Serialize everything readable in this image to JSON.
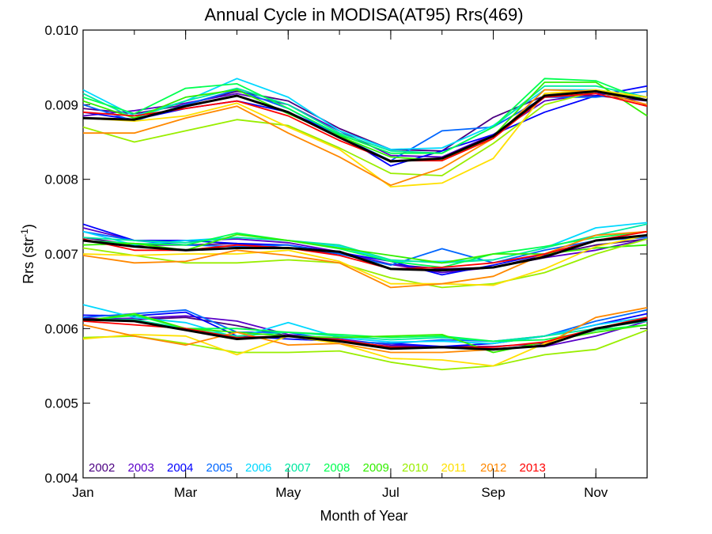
{
  "chart_data": {
    "type": "line",
    "title": "Annual Cycle in MODISA(AT95) Rrs(469)",
    "xlabel": "Month of Year",
    "ylabel_main": "Rrs (str",
    "ylabel_sup": "-1",
    "ylabel_close": ")",
    "xlim": [
      1,
      12
    ],
    "ylim": [
      0.004,
      0.01
    ],
    "x_ticks": [
      {
        "value": 1,
        "label": "Jan"
      },
      {
        "value": 3,
        "label": "Mar"
      },
      {
        "value": 5,
        "label": "May"
      },
      {
        "value": 7,
        "label": "Jul"
      },
      {
        "value": 9,
        "label": "Sep"
      },
      {
        "value": 11,
        "label": "Nov"
      }
    ],
    "y_ticks": [
      {
        "value": 0.004,
        "label": "0.004"
      },
      {
        "value": 0.005,
        "label": "0.005"
      },
      {
        "value": 0.006,
        "label": "0.006"
      },
      {
        "value": 0.007,
        "label": "0.007"
      },
      {
        "value": 0.008,
        "label": "0.008"
      },
      {
        "value": 0.009,
        "label": "0.009"
      },
      {
        "value": 0.01,
        "label": "0.010"
      }
    ],
    "grid": false,
    "legend_position": "bottom-left",
    "x": [
      1,
      2,
      3,
      4,
      5,
      6,
      7,
      8,
      9,
      10,
      11,
      12
    ],
    "series": [
      {
        "name": "2002",
        "color": "#4b0082",
        "top": [
          0.00895,
          0.00888,
          0.009,
          0.00918,
          0.00905,
          0.00868,
          0.0084,
          0.00838,
          0.00883,
          0.00912,
          0.00912,
          0.00905
        ],
        "mid": [
          0.00722,
          0.00712,
          0.00712,
          0.00714,
          0.00708,
          0.007,
          0.00686,
          0.0068,
          0.00682,
          0.00698,
          0.00712,
          0.0072
        ],
        "low": [
          0.00614,
          0.00612,
          0.00615,
          0.00604,
          0.0059,
          0.00583,
          0.00576,
          0.00576,
          0.00576,
          0.0058,
          0.00598,
          0.00614
        ]
      },
      {
        "name": "2003",
        "color": "#5a00c8",
        "top": [
          0.00885,
          0.00892,
          0.00902,
          0.00915,
          0.009,
          0.00865,
          0.00832,
          0.0083,
          0.0086,
          0.00905,
          0.00915,
          0.0091
        ],
        "mid": [
          0.00735,
          0.00718,
          0.00718,
          0.0072,
          0.00715,
          0.00703,
          0.00686,
          0.00675,
          0.00682,
          0.00695,
          0.00705,
          0.0072
        ],
        "low": [
          0.00612,
          0.00614,
          0.00617,
          0.0061,
          0.00592,
          0.00586,
          0.00578,
          0.00576,
          0.00573,
          0.00576,
          0.0059,
          0.0061
        ]
      },
      {
        "name": "2004",
        "color": "#0000ff",
        "top": [
          0.0089,
          0.0088,
          0.00895,
          0.00905,
          0.0089,
          0.0086,
          0.00818,
          0.00838,
          0.0086,
          0.0089,
          0.00912,
          0.00925
        ],
        "mid": [
          0.0074,
          0.00718,
          0.00718,
          0.00714,
          0.00712,
          0.00702,
          0.0069,
          0.00672,
          0.00685,
          0.007,
          0.00718,
          0.00725
        ],
        "low": [
          0.00618,
          0.00617,
          0.00622,
          0.0059,
          0.00586,
          0.00583,
          0.0058,
          0.00576,
          0.0058,
          0.0059,
          0.00605,
          0.0062
        ]
      },
      {
        "name": "2005",
        "color": "#0066ff",
        "top": [
          0.009,
          0.00878,
          0.009,
          0.0092,
          0.00895,
          0.00858,
          0.00825,
          0.00865,
          0.0087,
          0.0091,
          0.0091,
          0.00918
        ],
        "mid": [
          0.0073,
          0.00718,
          0.00712,
          0.0071,
          0.00712,
          0.007,
          0.00685,
          0.00707,
          0.00688,
          0.00705,
          0.00718,
          0.00722
        ],
        "low": [
          0.00615,
          0.0062,
          0.00625,
          0.00595,
          0.00595,
          0.00583,
          0.0058,
          0.00585,
          0.00583,
          0.0059,
          0.0061,
          0.00625
        ]
      },
      {
        "name": "2006",
        "color": "#00d8ff",
        "top": [
          0.0092,
          0.00885,
          0.00905,
          0.00935,
          0.0091,
          0.00865,
          0.0084,
          0.00842,
          0.00872,
          0.0092,
          0.0092,
          0.0091
        ],
        "mid": [
          0.0073,
          0.00712,
          0.00718,
          0.00722,
          0.00718,
          0.0071,
          0.0069,
          0.0069,
          0.00692,
          0.00708,
          0.00735,
          0.00742
        ],
        "low": [
          0.00632,
          0.00615,
          0.00608,
          0.00588,
          0.00608,
          0.00588,
          0.00582,
          0.00583,
          0.0058,
          0.0059,
          0.00605,
          0.00615
        ]
      },
      {
        "name": "2007",
        "color": "#00e8a0",
        "top": [
          0.00915,
          0.00882,
          0.00905,
          0.00922,
          0.009,
          0.00862,
          0.00838,
          0.00835,
          0.0087,
          0.00925,
          0.00925,
          0.0091
        ],
        "mid": [
          0.00722,
          0.00718,
          0.00715,
          0.00722,
          0.00718,
          0.00712,
          0.00692,
          0.00688,
          0.00692,
          0.00708,
          0.00725,
          0.0074
        ],
        "low": [
          0.00612,
          0.00612,
          0.006,
          0.0059,
          0.00595,
          0.0059,
          0.00585,
          0.00588,
          0.00583,
          0.0059,
          0.006,
          0.0061
        ]
      },
      {
        "name": "2008",
        "color": "#00ff50",
        "top": [
          0.0091,
          0.00888,
          0.00922,
          0.00928,
          0.00895,
          0.0086,
          0.00835,
          0.00835,
          0.0087,
          0.00935,
          0.00932,
          0.00905
        ],
        "mid": [
          0.00718,
          0.00714,
          0.00712,
          0.00728,
          0.00718,
          0.00707,
          0.0069,
          0.00682,
          0.007,
          0.0071,
          0.00722,
          0.0073
        ],
        "low": [
          0.0061,
          0.00618,
          0.006,
          0.006,
          0.00595,
          0.00592,
          0.00588,
          0.0059,
          0.00583,
          0.00585,
          0.00598,
          0.00605
        ]
      },
      {
        "name": "2009",
        "color": "#33ee00",
        "top": [
          0.00905,
          0.00882,
          0.0091,
          0.0092,
          0.00888,
          0.00858,
          0.0083,
          0.00825,
          0.00858,
          0.0093,
          0.0093,
          0.00885
        ],
        "mid": [
          0.00712,
          0.00714,
          0.00705,
          0.00726,
          0.00718,
          0.00708,
          0.00698,
          0.00688,
          0.007,
          0.007,
          0.00708,
          0.00712
        ],
        "low": [
          0.0061,
          0.0062,
          0.006,
          0.00595,
          0.0059,
          0.00588,
          0.0059,
          0.00592,
          0.00568,
          0.00582,
          0.00595,
          0.00605
        ]
      },
      {
        "name": "2010",
        "color": "#99ee00",
        "top": [
          0.0087,
          0.0085,
          0.00865,
          0.0088,
          0.00872,
          0.00842,
          0.00808,
          0.00805,
          0.00848,
          0.009,
          0.00918,
          0.0091
        ],
        "mid": [
          0.00708,
          0.00698,
          0.00688,
          0.00688,
          0.00692,
          0.00688,
          0.00668,
          0.00655,
          0.0066,
          0.00675,
          0.007,
          0.0072
        ],
        "low": [
          0.00588,
          0.0059,
          0.0058,
          0.00568,
          0.00568,
          0.0057,
          0.00555,
          0.00545,
          0.0055,
          0.00565,
          0.00572,
          0.00598
        ]
      },
      {
        "name": "2011",
        "color": "#ffe000",
        "top": [
          0.00882,
          0.00878,
          0.00885,
          0.00902,
          0.0087,
          0.0084,
          0.0079,
          0.00795,
          0.00828,
          0.00915,
          0.0092,
          0.0091
        ],
        "mid": [
          0.007,
          0.00698,
          0.007,
          0.007,
          0.00705,
          0.0069,
          0.0066,
          0.0066,
          0.00658,
          0.0068,
          0.0071,
          0.00725
        ],
        "low": [
          0.00586,
          0.00592,
          0.0059,
          0.00565,
          0.0059,
          0.0058,
          0.0056,
          0.00558,
          0.0055,
          0.0058,
          0.006,
          0.00615
        ]
      },
      {
        "name": "2012",
        "color": "#ff8800",
        "top": [
          0.00862,
          0.00862,
          0.00882,
          0.00898,
          0.00862,
          0.0083,
          0.00792,
          0.00815,
          0.00855,
          0.0092,
          0.00918,
          0.009
        ],
        "mid": [
          0.00698,
          0.00688,
          0.0069,
          0.00705,
          0.00698,
          0.00688,
          0.00655,
          0.0066,
          0.0067,
          0.007,
          0.00725,
          0.0073
        ],
        "low": [
          0.00605,
          0.0059,
          0.00578,
          0.00595,
          0.00578,
          0.0058,
          0.00568,
          0.00568,
          0.00572,
          0.00578,
          0.00615,
          0.00628
        ]
      },
      {
        "name": "2013",
        "color": "#ff0000",
        "top": [
          0.0089,
          0.00885,
          0.00895,
          0.00905,
          0.00885,
          0.00852,
          0.00825,
          0.00825,
          0.00855,
          0.0091,
          0.00915,
          0.00898
        ],
        "mid": [
          0.0072,
          0.00705,
          0.00705,
          0.00712,
          0.00708,
          0.00698,
          0.0068,
          0.00682,
          0.00688,
          0.007,
          0.00718,
          0.0073
        ],
        "low": [
          0.0061,
          0.00605,
          0.006,
          0.00588,
          0.0059,
          0.00585,
          0.00575,
          0.00575,
          0.00575,
          0.00582,
          0.006,
          0.00615
        ]
      }
    ],
    "mean": {
      "color": "#000000",
      "top": [
        0.00882,
        0.0088,
        0.00898,
        0.00912,
        0.0089,
        0.00856,
        0.00824,
        0.00828,
        0.00858,
        0.00912,
        0.00918,
        0.00906
      ],
      "mid": [
        0.00718,
        0.0071,
        0.00705,
        0.00708,
        0.00708,
        0.00703,
        0.0068,
        0.00678,
        0.00682,
        0.00696,
        0.00718,
        0.00725
      ],
      "low": [
        0.00612,
        0.0061,
        0.00598,
        0.00586,
        0.0059,
        0.00583,
        0.00573,
        0.00575,
        0.00572,
        0.00577,
        0.006,
        0.00612
      ]
    }
  }
}
